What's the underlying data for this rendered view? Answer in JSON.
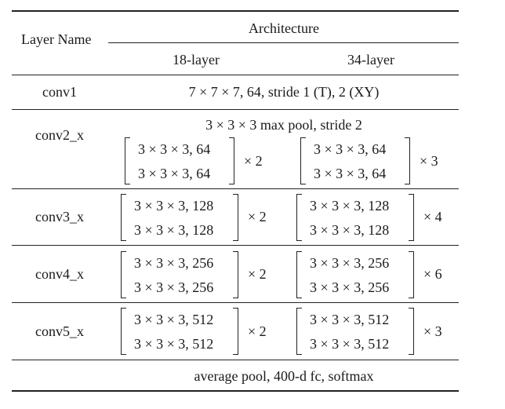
{
  "header": {
    "layer_name": "Layer Name",
    "architecture": "Architecture",
    "col_18": "18-layer",
    "col_34": "34-layer"
  },
  "rows": {
    "conv1": {
      "name": "conv1",
      "spec": "7 × 7 × 7, 64, stride 1 (T), 2 (XY)"
    },
    "conv2": {
      "name": "conv2_x",
      "pool": "3 × 3 × 3 max pool, stride 2",
      "left": {
        "line1": "3 × 3 × 3, 64",
        "line2": "3 × 3 × 3, 64",
        "mult": "× 2"
      },
      "right": {
        "line1": "3 × 3 × 3, 64",
        "line2": "3 × 3 × 3, 64",
        "mult": "× 3"
      }
    },
    "conv3": {
      "name": "conv3_x",
      "left": {
        "line1": "3 × 3 × 3, 128",
        "line2": "3 × 3 × 3, 128",
        "mult": "× 2"
      },
      "right": {
        "line1": "3 × 3 × 3, 128",
        "line2": "3 × 3 × 3, 128",
        "mult": "× 4"
      }
    },
    "conv4": {
      "name": "conv4_x",
      "left": {
        "line1": "3 × 3 × 3, 256",
        "line2": "3 × 3 × 3, 256",
        "mult": "× 2"
      },
      "right": {
        "line1": "3 × 3 × 3, 256",
        "line2": "3 × 3 × 3, 256",
        "mult": "× 6"
      }
    },
    "conv5": {
      "name": "conv5_x",
      "left": {
        "line1": "3 × 3 × 3, 512",
        "line2": "3 × 3 × 3, 512",
        "mult": "× 2"
      },
      "right": {
        "line1": "3 × 3 × 3, 512",
        "line2": "3 × 3 × 3, 512",
        "mult": "× 3"
      }
    },
    "final": {
      "spec": "average pool, 400-d fc, softmax"
    }
  }
}
